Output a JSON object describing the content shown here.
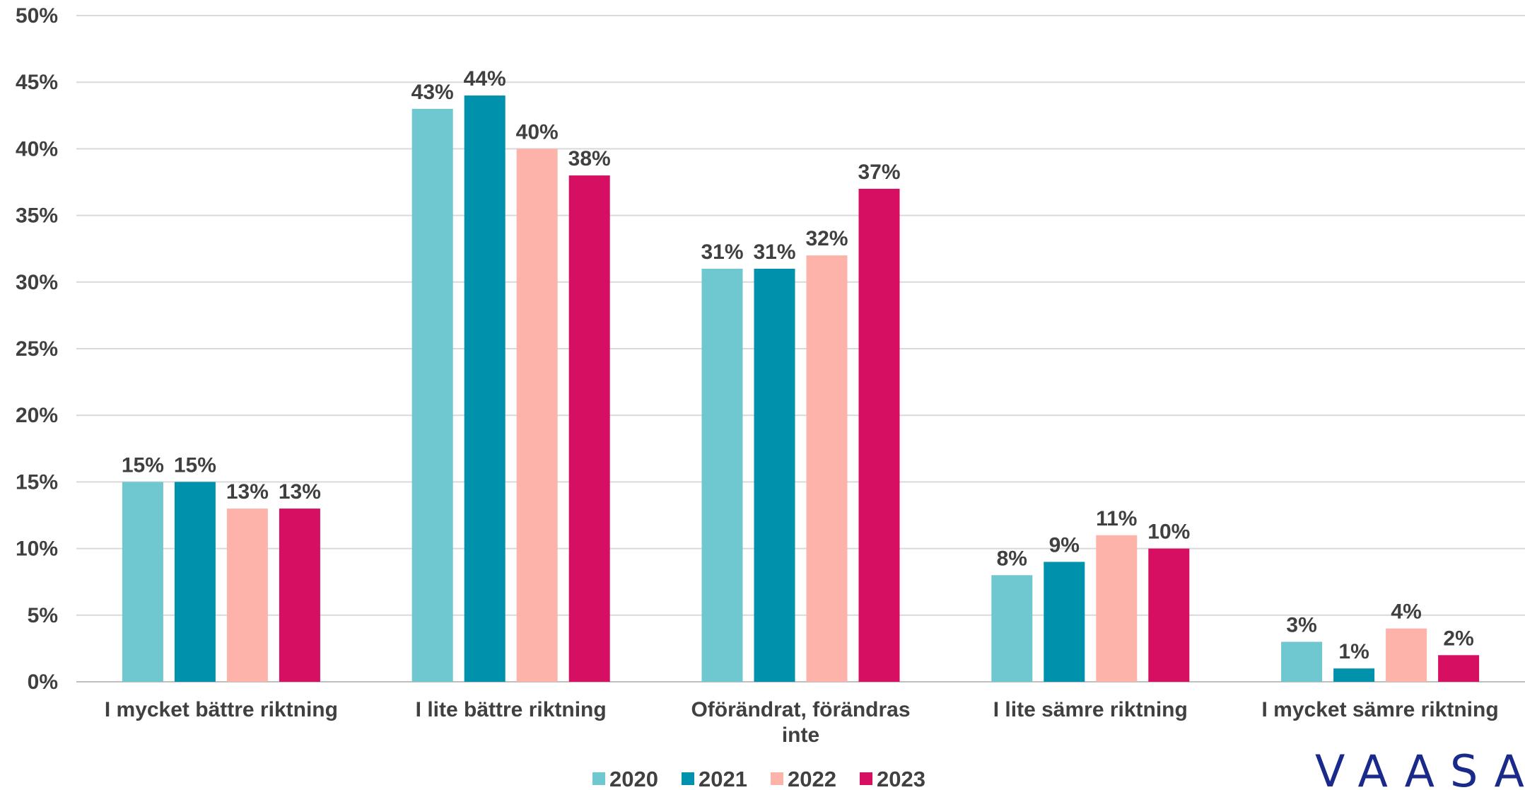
{
  "chart_data": {
    "type": "bar",
    "categories": [
      [
        "I mycket bättre riktning"
      ],
      [
        "I lite bättre riktning"
      ],
      [
        "Oförändrat, förändras",
        "inte"
      ],
      [
        "I lite sämre riktning"
      ],
      [
        "I mycket sämre riktning"
      ]
    ],
    "series": [
      {
        "name": "2020",
        "color": "#6fc7d0",
        "values": [
          15,
          43,
          31,
          8,
          3
        ]
      },
      {
        "name": "2021",
        "color": "#0091ad",
        "values": [
          15,
          44,
          31,
          9,
          1
        ]
      },
      {
        "name": "2022",
        "color": "#fdb3a9",
        "values": [
          13,
          40,
          32,
          11,
          4
        ]
      },
      {
        "name": "2023",
        "color": "#d60f62",
        "values": [
          13,
          38,
          37,
          10,
          2
        ]
      }
    ],
    "ylim": [
      0,
      50
    ],
    "ytick_step": 5,
    "value_suffix": "%",
    "grid": true,
    "legend_position": "bottom-center"
  },
  "logo": {
    "text": "VAASA"
  }
}
